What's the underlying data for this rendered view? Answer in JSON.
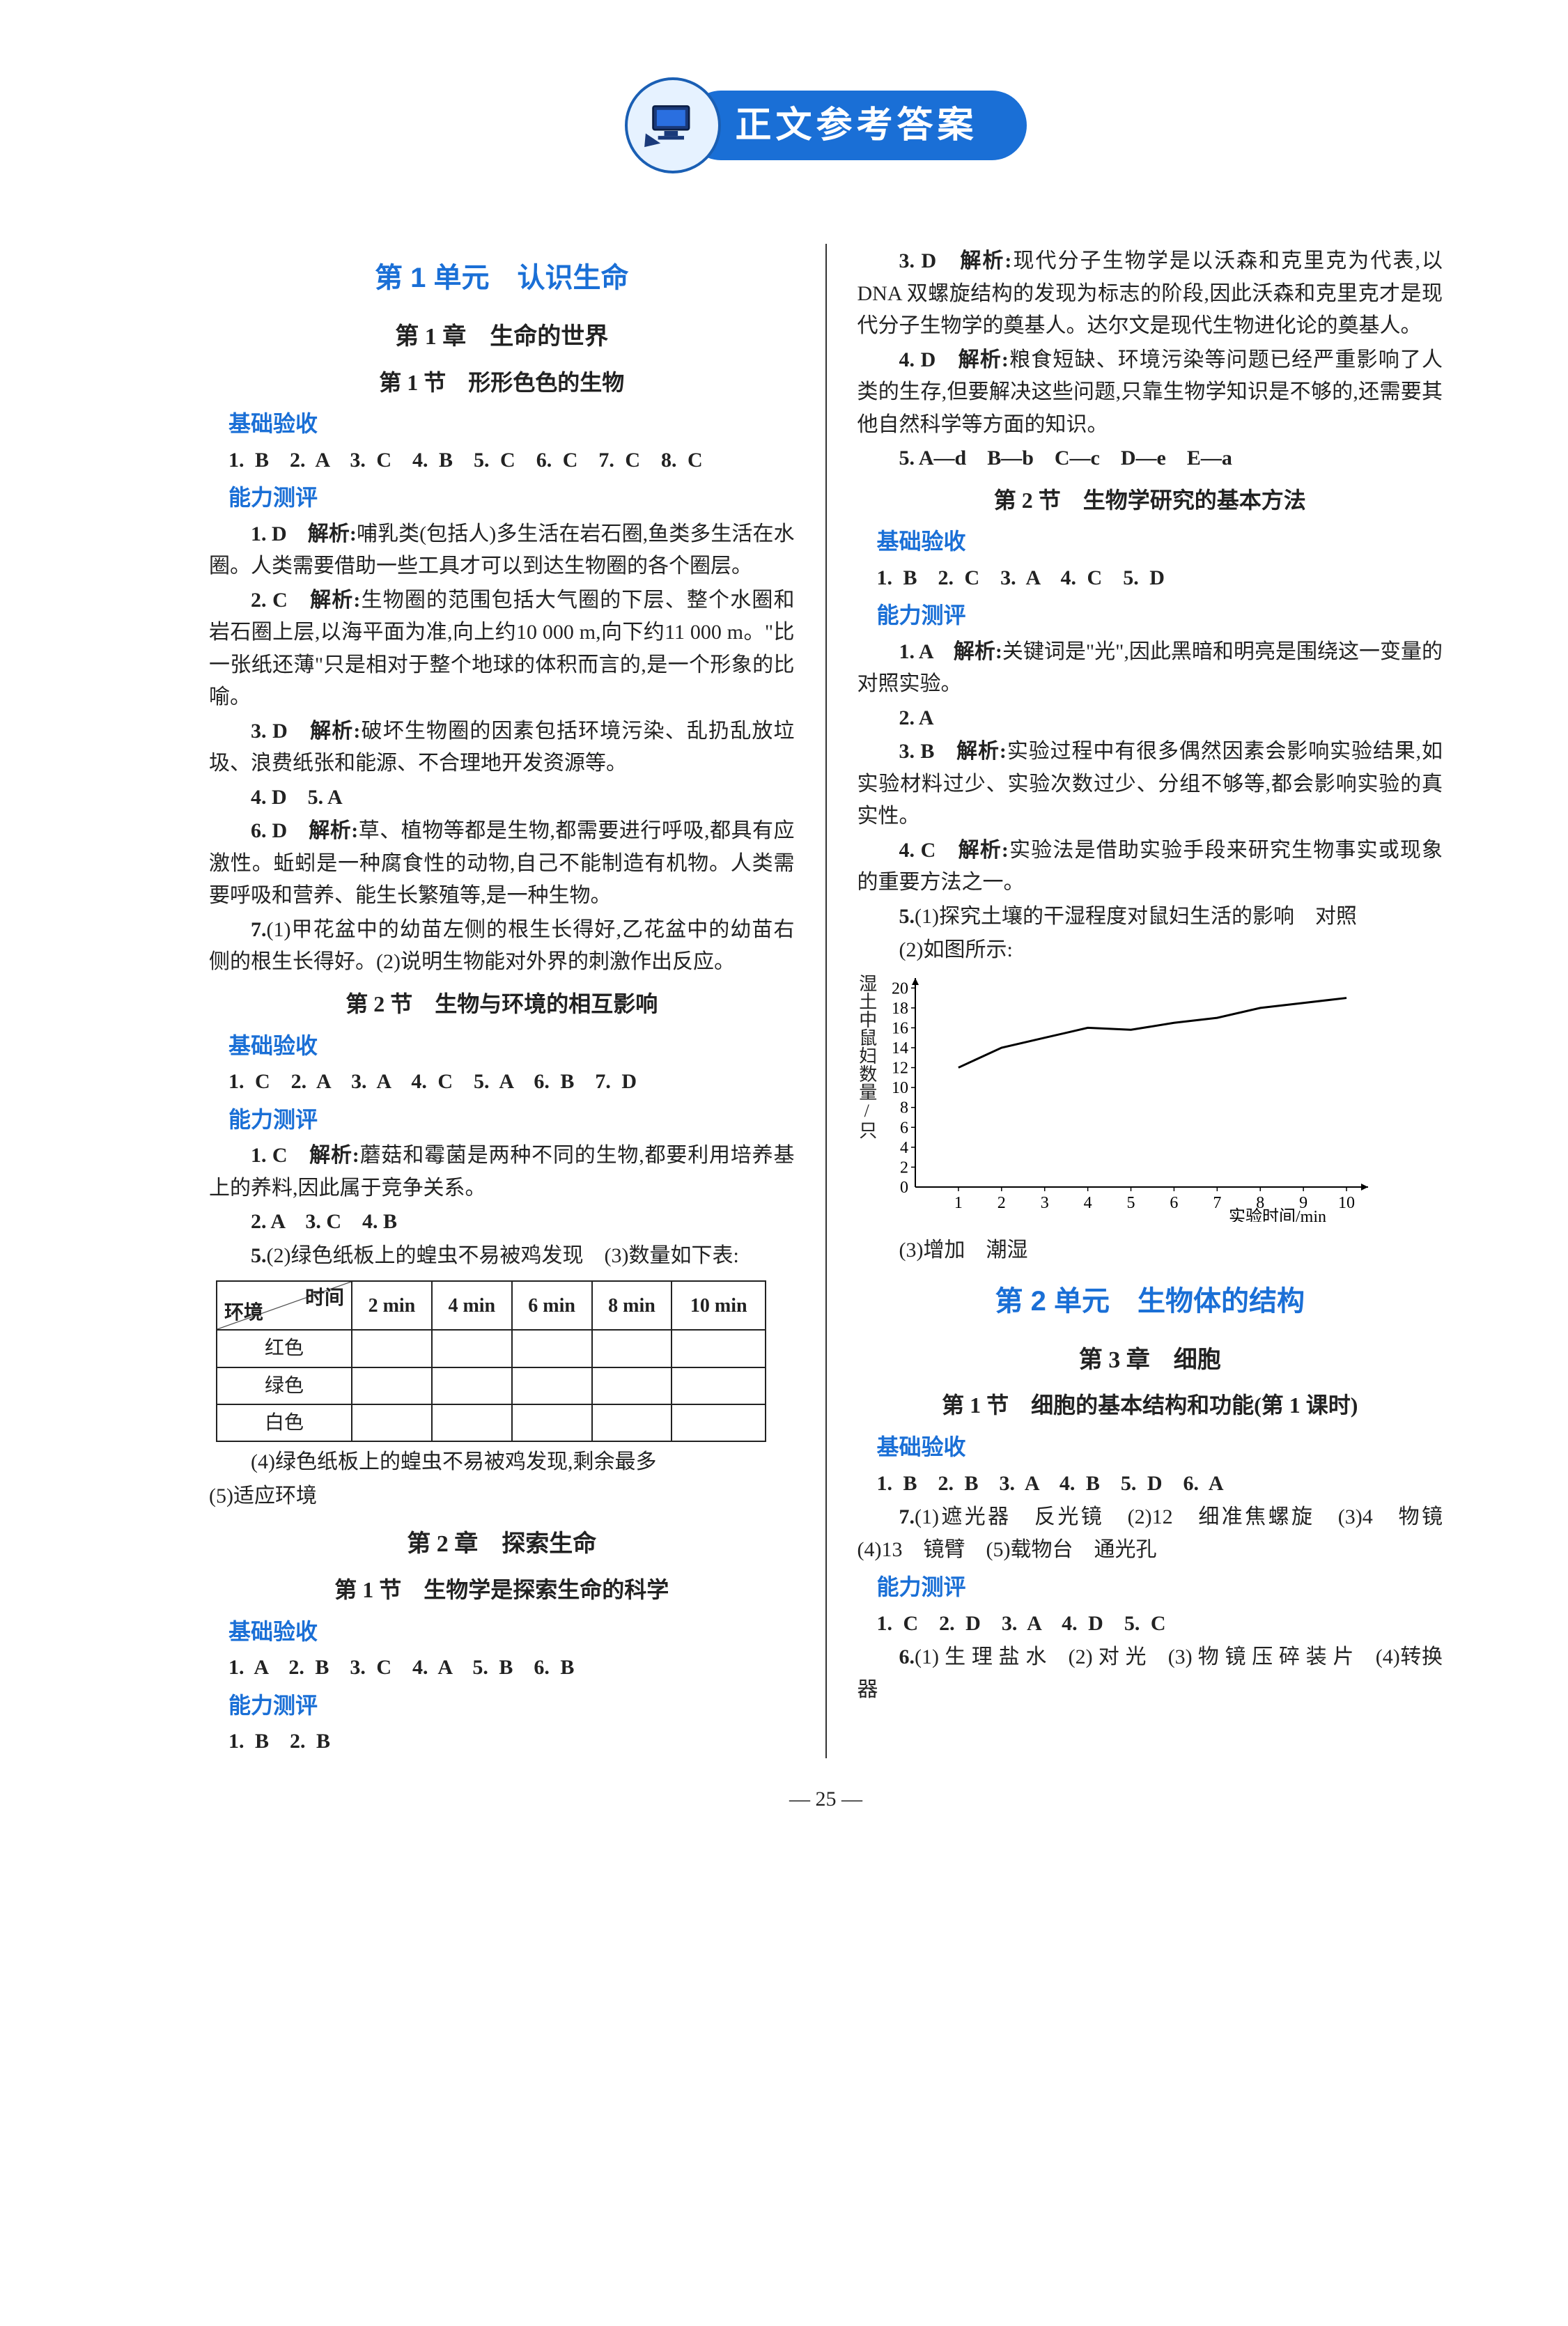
{
  "banner": {
    "title": "正文参考答案"
  },
  "left": {
    "unit1": "第 1 单元　认识生命",
    "ch1": "第 1 章　生命的世界",
    "s1_1": "第 1 节　形形色色的生物",
    "base": "基础验收",
    "s1_1_base_ans": "1. B　2. A　3. C　4. B　5. C　6. C　7. C　8. C",
    "ability": "能力测评",
    "s1_1_p1_lead": "1. D　解析:",
    "s1_1_p1": "哺乳类(包括人)多生活在岩石圈,鱼类多生活在水圈。人类需要借助一些工具才可以到达生物圈的各个圈层。",
    "s1_1_p2_lead": "2. C　解析:",
    "s1_1_p2": "生物圈的范围包括大气圈的下层、整个水圈和岩石圈上层,以海平面为准,向上约10 000 m,向下约11 000 m。\"比一张纸还薄\"只是相对于整个地球的体积而言的,是一个形象的比喻。",
    "s1_1_p3_lead": "3. D　解析:",
    "s1_1_p3": "破坏生物圈的因素包括环境污染、乱扔乱放垃圾、浪费纸张和能源、不合理地开发资源等。",
    "s1_1_p4": "4. D　5. A",
    "s1_1_p5_lead": "6. D　解析:",
    "s1_1_p5": "草、植物等都是生物,都需要进行呼吸,都具有应激性。蚯蚓是一种腐食性的动物,自己不能制造有机物。人类需要呼吸和营养、能生长繁殖等,是一种生物。",
    "s1_1_p6_lead": "7.",
    "s1_1_p6": "(1)甲花盆中的幼苗左侧的根生长得好,乙花盆中的幼苗右侧的根生长得好。(2)说明生物能对外界的刺激作出反应。",
    "s1_2": "第 2 节　生物与环境的相互影响",
    "s1_2_base_ans": "1. C　2. A　3. A　4. C　5. A　6. B　7. D",
    "s1_2_p1_lead": "1. C　解析:",
    "s1_2_p1": "蘑菇和霉菌是两种不同的生物,都要利用培养基上的养料,因此属于竞争关系。",
    "s1_2_p2": "2. A　3. C　4. B",
    "s1_2_p3_lead": "5.",
    "s1_2_p3": "(2)绿色纸板上的蝗虫不易被鸡发现　(3)数量如下表:",
    "table": {
      "head_time": "时间",
      "head_env": "环境",
      "cols": [
        "2 min",
        "4 min",
        "6 min",
        "8 min",
        "10 min"
      ],
      "rows": [
        "红色",
        "绿色",
        "白色"
      ]
    },
    "s1_2_p4": "(4)绿色纸板上的蝗虫不易被鸡发现,剩余最多",
    "s1_2_p5": "(5)适应环境",
    "ch2": "第 2 章　探索生命",
    "s2_1": "第 1 节　生物学是探索生命的科学",
    "s2_1_base_ans": "1. A　2. B　3. C　4. A　5. B　6. B",
    "s2_1_ability_ans": "1. B　2. B"
  },
  "right": {
    "p3_lead": "3. D　解析:",
    "p3": "现代分子生物学是以沃森和克里克为代表,以 DNA 双螺旋结构的发现为标志的阶段,因此沃森和克里克才是现代分子生物学的奠基人。达尔文是现代生物进化论的奠基人。",
    "p4_lead": "4. D　解析:",
    "p4": "粮食短缺、环境污染等问题已经严重影响了人类的生存,但要解决这些问题,只靠生物学知识是不够的,还需要其他自然科学等方面的知识。",
    "p5": "5. A—d　B—b　C—c　D—e　E—a",
    "s2_2": "第 2 节　生物学研究的基本方法",
    "base": "基础验收",
    "s2_2_base_ans": "1. B　2. C　3. A　4. C　5. D",
    "ability": "能力测评",
    "s2_2_p1_lead": "1. A　解析:",
    "s2_2_p1": "关键词是\"光\",因此黑暗和明亮是围绕这一变量的对照实验。",
    "s2_2_p2": "2. A",
    "s2_2_p3_lead": "3. B　解析:",
    "s2_2_p3": "实验过程中有很多偶然因素会影响实验结果,如实验材料过少、实验次数过少、分组不够等,都会影响实验的真实性。",
    "s2_2_p4_lead": "4. C　解析:",
    "s2_2_p4": "实验法是借助实验手段来研究生物事实或现象的重要方法之一。",
    "s2_2_p5_lead": "5.",
    "s2_2_p5": "(1)探究土壤的干湿程度对鼠妇生活的影响　对照",
    "s2_2_p5b": "(2)如图所示:",
    "chart": {
      "ylabel": "湿土中鼠妇数量/只",
      "xlabel": "实验时间/min",
      "xlim": [
        0,
        10.5
      ],
      "ylim": [
        0,
        21
      ],
      "xticks": [
        1,
        2,
        3,
        4,
        5,
        6,
        7,
        8,
        9,
        10
      ],
      "yticks": [
        2,
        4,
        6,
        8,
        10,
        12,
        14,
        16,
        18,
        20
      ],
      "points_x": [
        1,
        2,
        3,
        4,
        5,
        6,
        7,
        8,
        9,
        10
      ],
      "points_y": [
        12,
        14,
        15,
        16,
        15.8,
        16.5,
        17,
        18,
        18.5,
        19
      ],
      "line_color": "#000000",
      "line_width": 3,
      "bg_color": "#ffffff",
      "axis_color": "#000000",
      "font_size": 24
    },
    "s2_2_p6": "(3)增加　潮湿",
    "unit2": "第 2 单元　生物体的结构",
    "ch3": "第 3 章　细胞",
    "s3_1": "第 1 节　细胞的基本结构和功能(第 1 课时)",
    "s3_1_base_ans": "1. B　2. B　3. A　4. B　5. D　6. A",
    "s3_1_p7_lead": "7.",
    "s3_1_p7": "(1)遮光器　反光镜　(2)12　细准焦螺旋　(3)4　物镜　(4)13　镜臂　(5)载物台　通光孔",
    "s3_1_ability_ans": "1. C　2. D　3. A　4. D　5. C",
    "s3_1_p6_lead": "6.",
    "s3_1_p6": "(1) 生 理 盐 水　(2) 对 光　(3) 物 镜 压 碎 装 片　(4)转换器"
  },
  "footer": "— 25 —"
}
